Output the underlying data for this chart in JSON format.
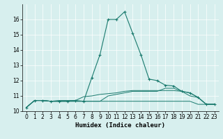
{
  "title": "",
  "xlabel": "Humidex (Indice chaleur)",
  "ylabel": "",
  "background_color": "#d7efee",
  "line_color": "#1a7a6e",
  "xlim": [
    -0.5,
    23.5
  ],
  "ylim": [
    10.0,
    17.0
  ],
  "yticks": [
    10,
    11,
    12,
    13,
    14,
    15,
    16
  ],
  "xticks": [
    0,
    1,
    2,
    3,
    4,
    5,
    6,
    7,
    8,
    9,
    10,
    11,
    12,
    13,
    14,
    15,
    16,
    17,
    18,
    19,
    20,
    21,
    22,
    23
  ],
  "line1_x": [
    0,
    1,
    2,
    3,
    4,
    5,
    6,
    7,
    8,
    9,
    10,
    11,
    12,
    13,
    14,
    15,
    16,
    17,
    18,
    19,
    20,
    21,
    22,
    23
  ],
  "line1_y": [
    10.25,
    10.7,
    10.7,
    10.65,
    10.65,
    10.65,
    10.7,
    10.65,
    12.2,
    13.7,
    16.0,
    16.0,
    16.5,
    15.1,
    13.7,
    12.1,
    12.0,
    11.7,
    11.65,
    11.3,
    11.2,
    10.9,
    10.45,
    10.45
  ],
  "line2_x": [
    0,
    1,
    2,
    3,
    4,
    5,
    6,
    7,
    8,
    9,
    10,
    11,
    12,
    13,
    14,
    15,
    16,
    17,
    18,
    19,
    20,
    21,
    22,
    23
  ],
  "line2_y": [
    10.25,
    10.7,
    10.7,
    10.65,
    10.7,
    10.7,
    10.7,
    10.95,
    11.0,
    11.1,
    11.15,
    11.2,
    11.3,
    11.35,
    11.35,
    11.35,
    11.35,
    11.35,
    11.35,
    11.3,
    11.2,
    10.9,
    10.45,
    10.45
  ],
  "line3_x": [
    0,
    1,
    2,
    3,
    4,
    5,
    6,
    7,
    8,
    9,
    10,
    11,
    12,
    13,
    14,
    15,
    16,
    17,
    18,
    19,
    20,
    21,
    22,
    23
  ],
  "line3_y": [
    10.25,
    10.7,
    10.7,
    10.65,
    10.65,
    10.65,
    10.65,
    10.65,
    10.65,
    10.65,
    10.65,
    10.65,
    10.65,
    10.65,
    10.65,
    10.65,
    10.65,
    10.65,
    10.65,
    10.65,
    10.65,
    10.45,
    10.45,
    10.45
  ],
  "line4_x": [
    0,
    1,
    2,
    3,
    4,
    5,
    6,
    7,
    8,
    9,
    10,
    11,
    12,
    13,
    14,
    15,
    16,
    17,
    18,
    19,
    20,
    21,
    22,
    23
  ],
  "line4_y": [
    10.25,
    10.7,
    10.7,
    10.65,
    10.65,
    10.65,
    10.65,
    10.65,
    10.65,
    10.65,
    11.0,
    11.1,
    11.2,
    11.3,
    11.3,
    11.3,
    11.3,
    11.5,
    11.5,
    11.3,
    11.0,
    10.9,
    10.45,
    10.45
  ],
  "grid_color": "#ffffff",
  "tick_fontsize": 5.5,
  "xlabel_fontsize": 6.5
}
